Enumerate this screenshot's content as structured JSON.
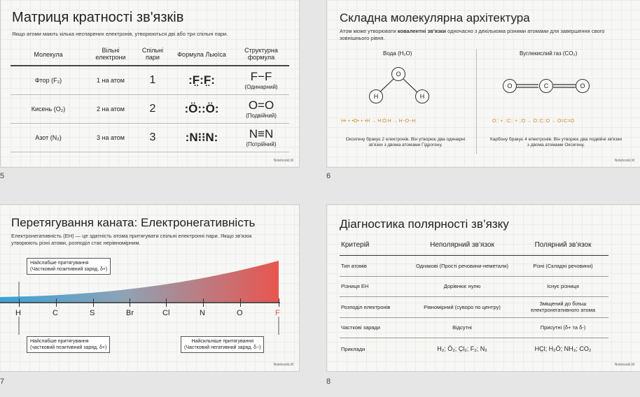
{
  "page_numbers": [
    "5",
    "6",
    "7",
    "8"
  ],
  "watermark": "NotebookLM",
  "slide5": {
    "title": "Матриця кратності зв'язків",
    "subtitle": "Якщо атоми мають кілька неспарених електронів, утворюються дві або три спільні пари.",
    "headers": [
      "Молекула",
      "Вільні електрони",
      "Спільні пари",
      "Формула Льюїса",
      "Структурна формула"
    ],
    "rows": [
      {
        "molecule": "Фтор (F₂)",
        "free": "1 на атом",
        "pairs": "1",
        "lewis": ":F̤:F̤:",
        "formula": "F−F",
        "kind": "(Одинарний)"
      },
      {
        "molecule": "Кисень (O₂)",
        "free": "2 на атом",
        "pairs": "2",
        "lewis": ":Ö::Ö:",
        "formula": "O=O",
        "kind": "(Подвійний)"
      },
      {
        "molecule": "Азот (N₂)",
        "free": "3 на атом",
        "pairs": "3",
        "lewis": ":N⁝⁝N:",
        "formula": "N≡N",
        "kind": "(Потрійний)"
      }
    ]
  },
  "slide6": {
    "title": "Складна молекулярна архітектура",
    "subtitle_pre": "Атом може утворювати ",
    "subtitle_bold": "ковалентні зв'язки",
    "subtitle_post": " одночасно з декількома різними атомами для завершення свого зовнішнього рівня.",
    "water_label": "Вода (H₂O)",
    "co2_label": "Вуглекислий газ (CO₂)",
    "water_atoms": [
      "O",
      "H",
      "H"
    ],
    "co2_atoms": [
      "O",
      "C",
      "O"
    ],
    "water_eq": "H• + •O• + •H → H:Ö:H → H−O−H",
    "co2_eq": "O:: + ::C:: + ::O → O::C::O → O=C=O",
    "water_note": "Оксигену бракує 2 електронів. Він утворює два одинарні зв'язки з двома атомами Гідрогену.",
    "co2_note": "Карбону бракує 4 електронів. Він утворює два подвійні зв'язки з двома атомами Оксигену."
  },
  "slide7": {
    "title": "Перетягування каната: Електронегативність",
    "subtitle": "Електронегативність (ЕН) — це здатність атома притягувати спільні електронні пари. Якщо зв'язок утворюють різні атоми, розподіл стає нерівномірним.",
    "elements": [
      "H",
      "C",
      "S",
      "Br",
      "Cl",
      "N",
      "O",
      "F"
    ],
    "label_top_1": "Найслабше притягування",
    "label_top_2": "(Частковий позитивний заряд, δ+)",
    "label_bl_1": "Найслабше притягування",
    "label_bl_2": "(частковий позитивний заряд, δ+)",
    "label_br_1": "Найсильніше притягування",
    "label_br_2": "(Частковий негативний заряд, δ−)"
  },
  "slide8": {
    "title": "Діагностика полярності зв’язку",
    "headers": [
      "Критерій",
      "Неполярний зв’язок",
      "Полярний зв’язок"
    ],
    "rows": [
      [
        "Тип атомів",
        "Однакові (Прості речовини-неметали)",
        "Різні (Складні речовини)"
      ],
      [
        "Різниця ЕН",
        "Дорівнює нулю",
        "Існує різниця"
      ],
      [
        "Розподіл електронів",
        "Рівномірний (суворо по центру)",
        "Зміщений до більш електронегативного атома"
      ],
      [
        "Часткові заряди",
        "Відсутні",
        "Присутні (δ+ та δ-)"
      ],
      [
        "Приклади",
        "H₂; Ö₂; C̤l₂; F₂; N₂",
        "HC̤l; H₂Ö; NH₃; CO₂"
      ]
    ]
  },
  "colors": {
    "accent_red": "#e8554f",
    "accent_blue": "#3aa3d8",
    "orange": "#d08a2a"
  }
}
